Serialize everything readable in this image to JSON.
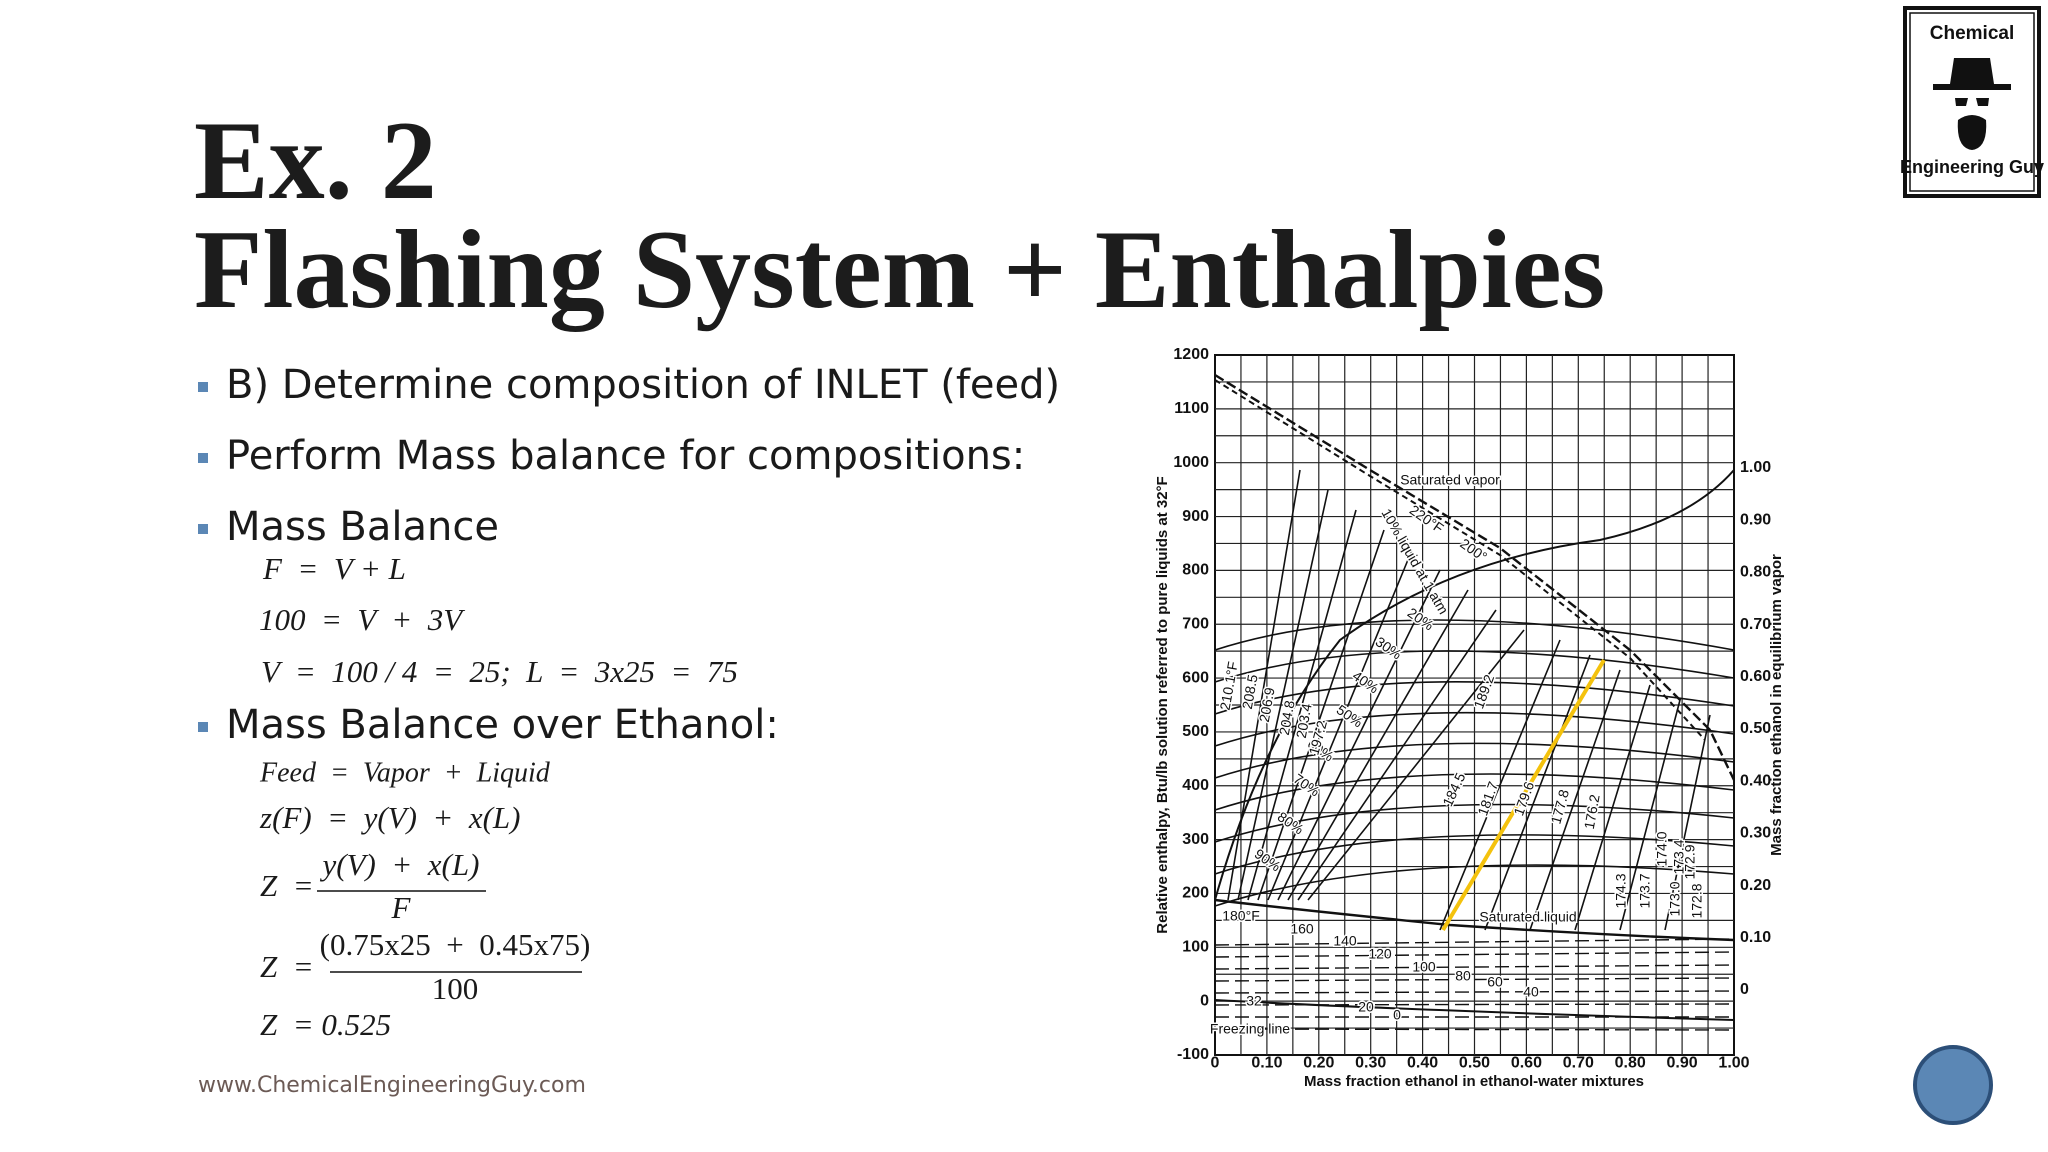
{
  "logo": {
    "line1": "Chemical",
    "line2": "Engineering Guy"
  },
  "title": {
    "line1": "Ex. 2",
    "line2": "Flashing System + Enthalpies"
  },
  "bullets": [
    "B) Determine composition of INLET (feed)",
    "Perform Mass balance for compositions:",
    "Mass Balance",
    "Mass Balance over Ethanol:"
  ],
  "equations": {
    "mass_balance": [
      "F  =  V + L",
      "100  =  V  +  3V",
      "V  =  100 / 4  =  25;  L  =  3x25  =  75"
    ],
    "ethanol": {
      "line1": "Feed  =  Vapor  +  Liquid",
      "line2": "z(F)  =  y(V)  +  x(L)",
      "frac1": {
        "lhs": "Z  =",
        "num": "y(V)  +  x(L)",
        "den": "F"
      },
      "frac2": {
        "lhs": "Z  =",
        "num": "(0.75x25  +  0.45x75)",
        "den": "100"
      },
      "result": "Z  = 0.525"
    }
  },
  "footer": "www.ChemicalEngineeringGuy.com",
  "figure": {
    "y_axis_title": "Relative enthalpy, Btu/lb solution referred to pure liquids at 32°F",
    "x_axis_title": "Mass fraction ethanol in ethanol-water mixtures",
    "y2_axis_title": "Mass fraction ethanol in equilibrium vapor",
    "yticks": [
      "-100",
      "0",
      "100",
      "200",
      "300",
      "400",
      "500",
      "600",
      "700",
      "800",
      "900",
      "1000",
      "1100",
      "1200"
    ],
    "xticks": [
      "0",
      "0.10",
      "0.20",
      "0.30",
      "0.40",
      "0.50",
      "0.60",
      "0.70",
      "0.80",
      "0.90",
      "1.00"
    ],
    "y2ticks": [
      "0",
      "0.10",
      "0.20",
      "0.30",
      "0.40",
      "0.50",
      "0.60",
      "0.70",
      "0.80",
      "0.90",
      "1.00"
    ],
    "labels": [
      "Saturated vapor",
      "Saturated liquid",
      "Freezing line",
      "220°F",
      "200°",
      "10% liquid at 1 atm",
      "20%",
      "30%",
      "40%",
      "50%",
      "60%",
      "70%",
      "80%",
      "90%",
      "180°F",
      "160",
      "140",
      "120",
      "100",
      "80",
      "60",
      "40",
      "20",
      "0",
      "32",
      "184.5",
      "181.7",
      "179.6",
      "177.8",
      "176.2",
      "189.2",
      "210.1°F",
      "208.5",
      "206.9",
      "204.8",
      "203.4",
      "197.2",
      "174.3",
      "173.7",
      "174.0",
      "173.4",
      "173.0",
      "172.9",
      "172.8"
    ]
  }
}
